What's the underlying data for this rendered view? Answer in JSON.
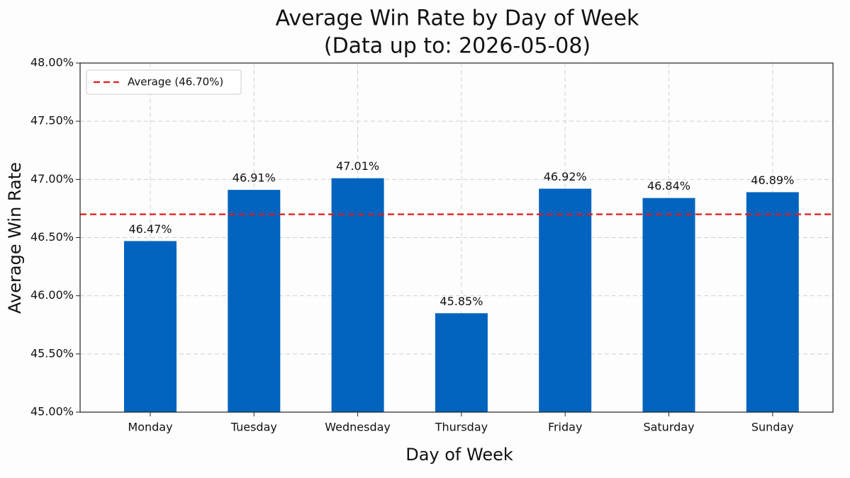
{
  "chart_data": {
    "type": "bar",
    "title": "Average Win Rate by Day of Week",
    "subtitle": "(Data up to: 2026-05-08)",
    "x_label": "Day of Week",
    "y_label": "Average Win Rate",
    "categories": [
      "Monday",
      "Tuesday",
      "Wednesday",
      "Thursday",
      "Friday",
      "Saturday",
      "Sunday"
    ],
    "values": [
      46.47,
      46.91,
      47.01,
      45.85,
      46.92,
      46.84,
      46.89
    ],
    "value_labels": [
      "46.47%",
      "46.91%",
      "47.01%",
      "45.85%",
      "46.92%",
      "46.84%",
      "46.89%"
    ],
    "color": "#0063be",
    "ylim": [
      45,
      48
    ],
    "yticks": [
      {
        "value": 45,
        "label": "45.00%"
      },
      {
        "value": 45.5,
        "label": "45.50%"
      },
      {
        "value": 46,
        "label": "46.00%"
      },
      {
        "value": 46.5,
        "label": "46.50%"
      },
      {
        "value": 47,
        "label": "47.00%"
      },
      {
        "value": 47.5,
        "label": "47.50%"
      },
      {
        "value": 48,
        "label": "48.00%"
      }
    ],
    "grid": true,
    "reference_line": {
      "value": 46.7,
      "label": "Average (46.70%)",
      "color": "#e31a1c"
    },
    "legend": "upper left"
  }
}
